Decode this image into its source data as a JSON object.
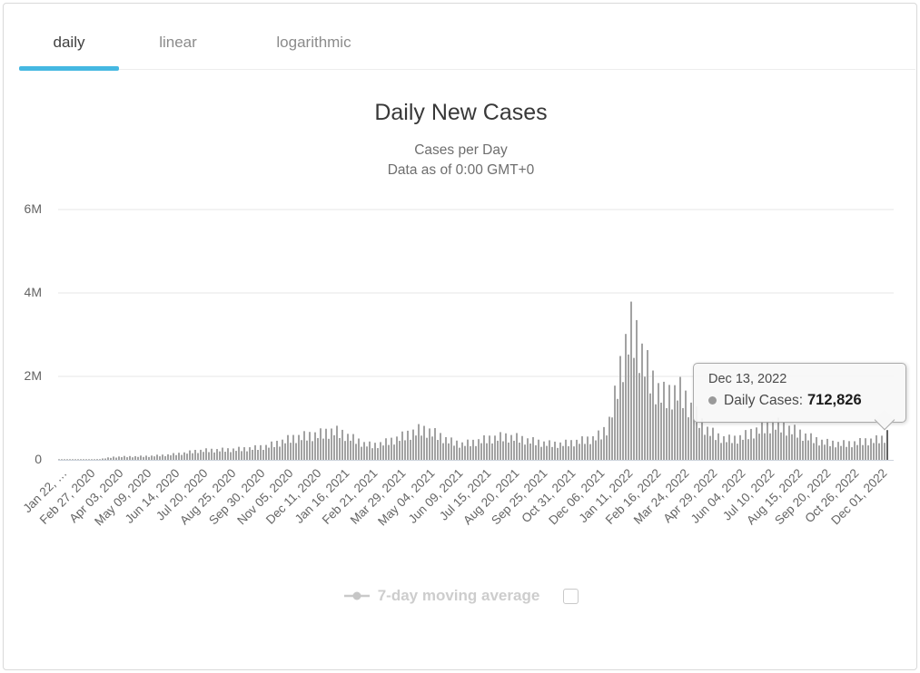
{
  "tabs": {
    "items": [
      {
        "label": "daily",
        "active": true
      },
      {
        "label": "linear",
        "active": false
      },
      {
        "label": "logarithmic",
        "active": false
      }
    ]
  },
  "colors": {
    "tab_underline": "#45b8e2",
    "bar": "#a2a2a2",
    "bar_highlight": "#616161",
    "gridline": "#e7e7e7",
    "axis_line": "#ccd3dc",
    "legend_disabled": "#cdcdcd",
    "tooltip_bg": "#f7f7f7",
    "tooltip_border": "#a9a9a9"
  },
  "chart_data": {
    "type": "bar",
    "title": "Daily New Cases",
    "subtitle1": "Cases per Day",
    "subtitle2": "Data as of 0:00 GMT+0",
    "series_name": "Daily Cases",
    "grid": "horizontal",
    "legend_position": "bottom",
    "legend_label": "7-day moving average",
    "legend_checked": false,
    "x_start": "Jan 22, 2020",
    "x_end": "Dec 13, 2022",
    "total_days": 1056,
    "bar_count": 305,
    "ylim_millions": [
      0,
      6.2
    ],
    "y_ticks": [
      {
        "label": "0",
        "value_millions": 0
      },
      {
        "label": "2M",
        "value_millions": 2
      },
      {
        "label": "4M",
        "value_millions": 4
      },
      {
        "label": "6M",
        "value_millions": 6
      }
    ],
    "x_tick_labels": [
      "Jan 22, …",
      "Feb 27, 2020",
      "Apr 03, 2020",
      "May 09, 2020",
      "Jun 14, 2020",
      "Jul 20, 2020",
      "Aug 25, 2020",
      "Sep 30, 2020",
      "Nov 05, 2020",
      "Dec 11, 2020",
      "Jan 16, 2021",
      "Feb 21, 2021",
      "Mar 29, 2021",
      "May 04, 2021",
      "Jun 09, 2021",
      "Jul 15, 2021",
      "Aug 20, 2021",
      "Sep 25, 2021",
      "Oct 31, 2021",
      "Dec 06, 2021",
      "Jan 11, 2022",
      "Feb 16, 2022",
      "Mar 24, 2022",
      "Apr 29, 2022",
      "Jun 04, 2022",
      "Jul 10, 2022",
      "Aug 15, 2022",
      "Sep 20, 2022",
      "Oct 26, 2022",
      "Dec 01, 2022"
    ],
    "envelope_points_day_millions": [
      [
        0,
        0.003
      ],
      [
        15,
        0.004
      ],
      [
        22,
        0.012
      ],
      [
        28,
        0.005
      ],
      [
        40,
        0.01
      ],
      [
        50,
        0.02
      ],
      [
        60,
        0.05
      ],
      [
        70,
        0.085
      ],
      [
        85,
        0.095
      ],
      [
        100,
        0.1
      ],
      [
        115,
        0.11
      ],
      [
        130,
        0.13
      ],
      [
        145,
        0.16
      ],
      [
        160,
        0.2
      ],
      [
        175,
        0.26
      ],
      [
        190,
        0.28
      ],
      [
        205,
        0.29
      ],
      [
        220,
        0.3
      ],
      [
        235,
        0.32
      ],
      [
        250,
        0.35
      ],
      [
        265,
        0.4
      ],
      [
        280,
        0.5
      ],
      [
        295,
        0.62
      ],
      [
        310,
        0.68
      ],
      [
        322,
        0.72
      ],
      [
        335,
        0.76
      ],
      [
        350,
        0.85
      ],
      [
        362,
        0.76
      ],
      [
        375,
        0.62
      ],
      [
        388,
        0.48
      ],
      [
        400,
        0.42
      ],
      [
        413,
        0.49
      ],
      [
        426,
        0.58
      ],
      [
        440,
        0.7
      ],
      [
        453,
        0.82
      ],
      [
        462,
        0.88
      ],
      [
        472,
        0.84
      ],
      [
        485,
        0.7
      ],
      [
        498,
        0.55
      ],
      [
        512,
        0.46
      ],
      [
        526,
        0.5
      ],
      [
        540,
        0.58
      ],
      [
        554,
        0.64
      ],
      [
        568,
        0.68
      ],
      [
        582,
        0.65
      ],
      [
        596,
        0.58
      ],
      [
        610,
        0.52
      ],
      [
        624,
        0.47
      ],
      [
        638,
        0.46
      ],
      [
        652,
        0.5
      ],
      [
        666,
        0.56
      ],
      [
        680,
        0.62
      ],
      [
        692,
        0.75
      ],
      [
        700,
        1.0
      ],
      [
        708,
        1.7
      ],
      [
        716,
        2.7
      ],
      [
        724,
        3.5
      ],
      [
        730,
        3.82
      ],
      [
        738,
        3.5
      ],
      [
        746,
        2.9
      ],
      [
        754,
        2.4
      ],
      [
        762,
        2.1
      ],
      [
        772,
        1.85
      ],
      [
        782,
        1.95
      ],
      [
        790,
        2.05
      ],
      [
        798,
        1.8
      ],
      [
        808,
        1.45
      ],
      [
        818,
        1.1
      ],
      [
        828,
        0.85
      ],
      [
        840,
        0.68
      ],
      [
        852,
        0.6
      ],
      [
        864,
        0.62
      ],
      [
        876,
        0.72
      ],
      [
        888,
        0.85
      ],
      [
        900,
        0.97
      ],
      [
        910,
        1.05
      ],
      [
        920,
        1.0
      ],
      [
        932,
        0.9
      ],
      [
        944,
        0.78
      ],
      [
        956,
        0.66
      ],
      [
        968,
        0.56
      ],
      [
        980,
        0.5
      ],
      [
        992,
        0.48
      ],
      [
        1004,
        0.47
      ],
      [
        1016,
        0.5
      ],
      [
        1028,
        0.55
      ],
      [
        1040,
        0.58
      ],
      [
        1050,
        0.62
      ],
      [
        1056,
        0.713
      ]
    ],
    "bar_modulation": [
      1.0,
      0.66,
      0.94,
      0.62,
      0.9,
      0.7
    ],
    "highlight_point": {
      "date": "Dec 13, 2022",
      "label": "Daily Cases:",
      "value_formatted": "712,826",
      "value": 712826,
      "value_millions": 0.712826
    }
  }
}
